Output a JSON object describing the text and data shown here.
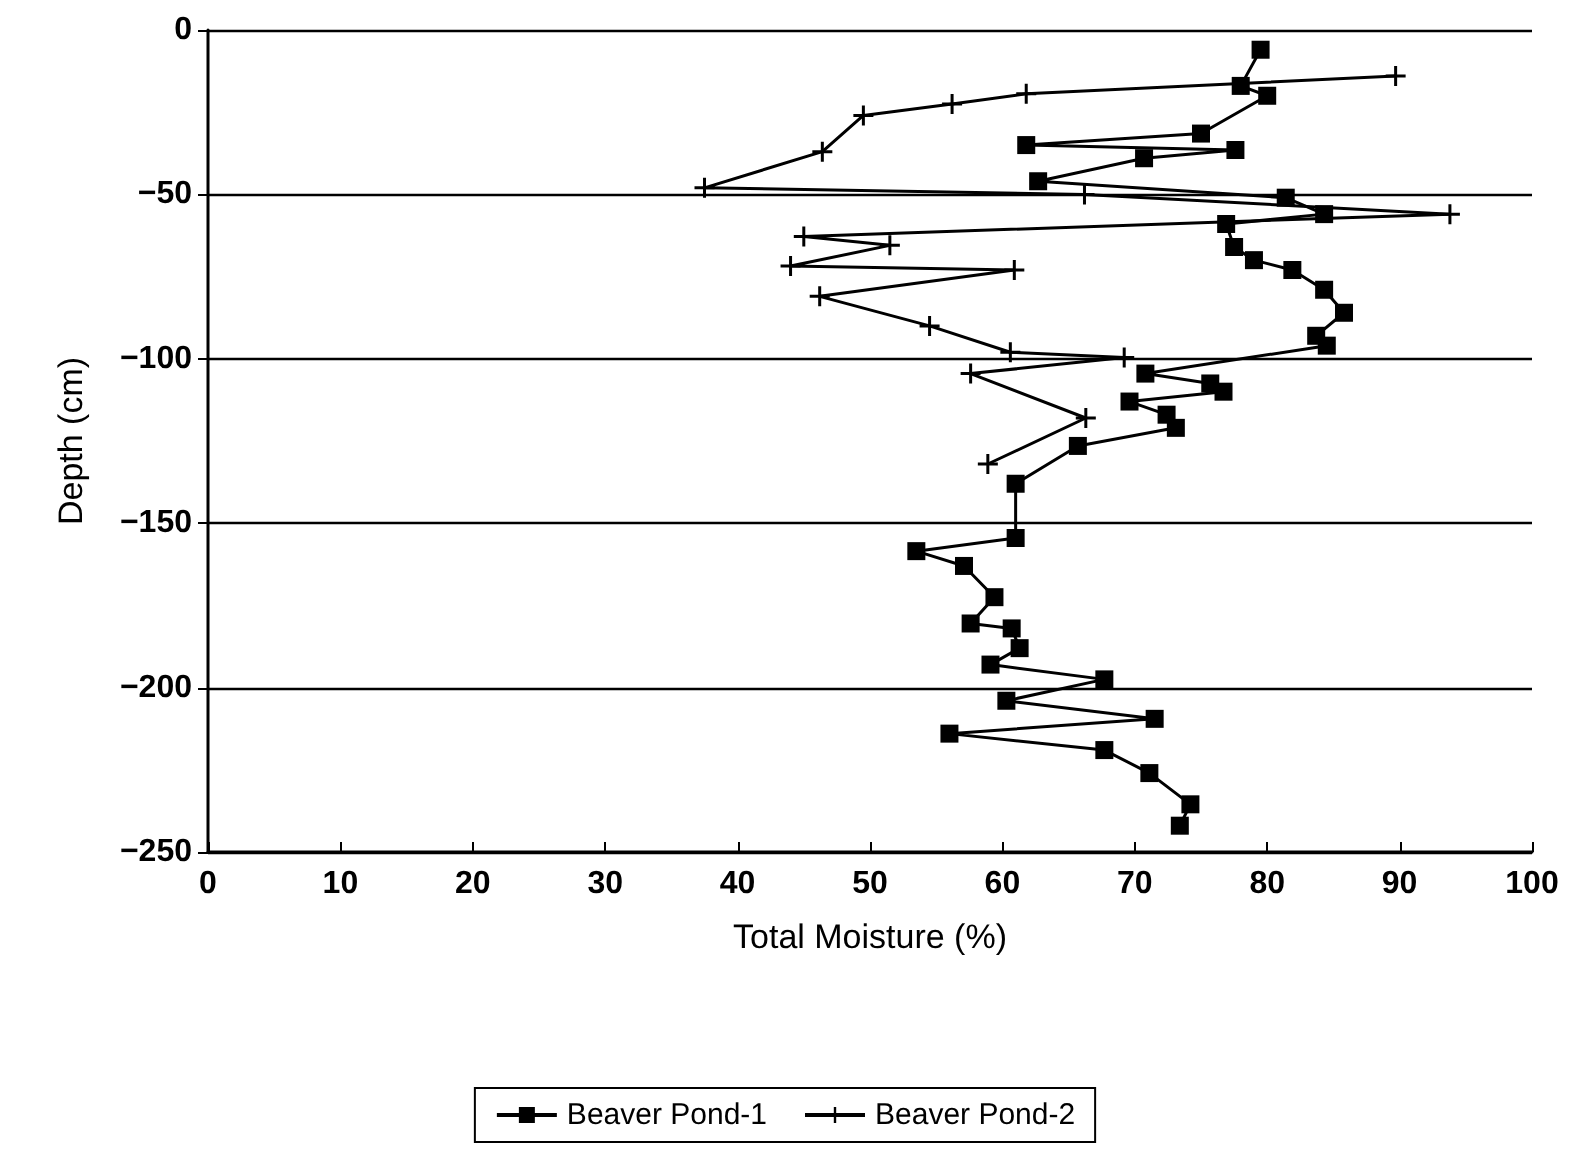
{
  "chart_data": {
    "type": "line",
    "xlabel": "Total Moisture (%)",
    "ylabel": "Depth (cm)",
    "xlim": [
      0,
      100
    ],
    "xticks": [
      0,
      10,
      20,
      30,
      40,
      50,
      60,
      70,
      80,
      90,
      100
    ],
    "ylim": [
      -250,
      0
    ],
    "yticks": [
      -250,
      -200,
      -150,
      -100,
      -50,
      0
    ],
    "grid": "y",
    "legend": "bottom",
    "line_style": "solid",
    "series": [
      {
        "name": "Beaver Pond-1",
        "color": "#000000",
        "marker": "square",
        "x": [
          79.5,
          78,
          80,
          75,
          61.8,
          77.6,
          70.7,
          62.7,
          81.4,
          84.3,
          76.9,
          77.5,
          79,
          81.9,
          84.3,
          85.8,
          83.7,
          84.5,
          70.8,
          75.7,
          76.7,
          69.6,
          72.4,
          73.1,
          65.7,
          61,
          61,
          53.5,
          57.1,
          59.4,
          57.6,
          60.7,
          61.3,
          59.1,
          67.7,
          60.3,
          71.5,
          56,
          67.7,
          71.1,
          74.2,
          73.4
        ],
        "values": [
          -6,
          -17,
          -20,
          -31.5,
          -35,
          -36.5,
          -39,
          -46,
          -51,
          -56,
          -59,
          -66,
          -70,
          -73,
          -79,
          -86,
          -93,
          -96,
          -104.5,
          -107.5,
          -110,
          -113,
          -117,
          -121,
          -126.5,
          -138,
          -154.5,
          -158.5,
          -163,
          -172.5,
          -180.5,
          -182,
          -188,
          -193,
          -197.5,
          -204,
          -209.5,
          -214,
          -219,
          -226,
          -235.5,
          -242
        ]
      },
      {
        "name": "Beaver Pond-2",
        "color": "#000000",
        "marker": "cross",
        "x": [
          89.7,
          61.8,
          56.2,
          49.5,
          46.4,
          37.5,
          66.2,
          93.8,
          45,
          51.5,
          44,
          60.9,
          46.2,
          54.5,
          60.6,
          69.2,
          57.6,
          66.3,
          58.9
        ],
        "values": [
          -14,
          -19.4,
          -22.5,
          -26,
          -37,
          -48,
          -50,
          -56,
          -62.8,
          -65.5,
          -71.8,
          -73,
          -81,
          -90,
          -98,
          -99.6,
          -104.5,
          -118,
          -132
        ]
      }
    ]
  }
}
